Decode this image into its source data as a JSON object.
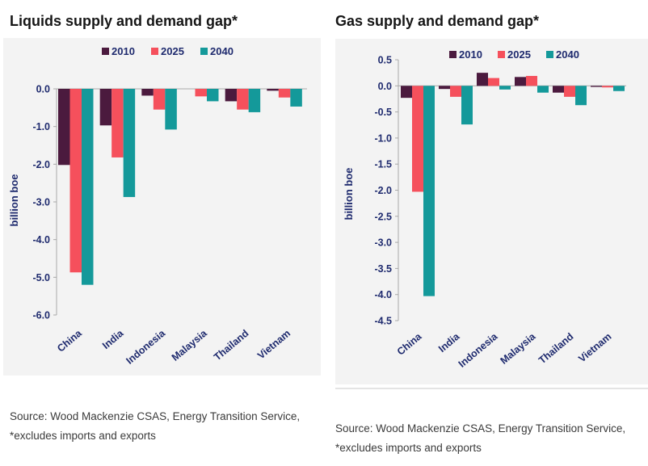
{
  "colors": {
    "series_2010": "#4b1a3e",
    "series_2025": "#f5505c",
    "series_2040": "#14999a",
    "axis": "#a8a8a8",
    "text": "#1e2a6e"
  },
  "liquids": {
    "source_line1": "Source: Wood Mackenzie CSAS, Energy Transition Service,",
    "source_line2": "*excludes imports and exports"
  },
  "gas": {
    "source_line1": "Source: Wood Mackenzie CSAS, Energy Transition Service,",
    "source_line2": "*excludes imports and exports"
  },
  "chart_data": [
    {
      "type": "bar",
      "title": "Liquids supply and demand gap*",
      "xlabel": "",
      "ylabel": "billion boe",
      "ylim": [
        -6.0,
        0.0
      ],
      "yticks": [
        0.0,
        -1.0,
        -2.0,
        -3.0,
        -4.0,
        -5.0,
        -6.0
      ],
      "ytick_labels": [
        "0.0",
        "-1.0",
        "-2.0",
        "-3.0",
        "-4.0",
        "-5.0",
        "-6.0"
      ],
      "legend_position": "top-center",
      "categories": [
        "China",
        "India",
        "Indonesia",
        "Malaysia",
        "Thailand",
        "Vietnam"
      ],
      "series": [
        {
          "name": "2010",
          "values": [
            -2.02,
            -0.97,
            -0.18,
            0.0,
            -0.33,
            -0.05
          ]
        },
        {
          "name": "2025",
          "values": [
            -4.87,
            -1.82,
            -0.55,
            -0.2,
            -0.55,
            -0.23
          ]
        },
        {
          "name": "2040",
          "values": [
            -5.2,
            -2.87,
            -1.08,
            -0.33,
            -0.62,
            -0.47
          ]
        }
      ]
    },
    {
      "type": "bar",
      "title": "Gas supply and demand gap*",
      "xlabel": "",
      "ylabel": "billion boe",
      "ylim": [
        -4.5,
        0.5
      ],
      "yticks": [
        0.5,
        0.0,
        -0.5,
        -1.0,
        -1.5,
        -2.0,
        -2.5,
        -3.0,
        -3.5,
        -4.0,
        -4.5
      ],
      "ytick_labels": [
        "0.5",
        "0.0",
        "-0.5",
        "-1.0",
        "-1.5",
        "-2.0",
        "-2.5",
        "-3.0",
        "-3.5",
        "-4.0",
        "-4.5"
      ],
      "legend_position": "top-center",
      "categories": [
        "China",
        "India",
        "Indonesia",
        "Malaysia",
        "Thailand",
        "Vietnam"
      ],
      "series": [
        {
          "name": "2010",
          "values": [
            -0.23,
            -0.06,
            0.25,
            0.17,
            -0.13,
            -0.02
          ]
        },
        {
          "name": "2025",
          "values": [
            -2.03,
            -0.21,
            0.15,
            0.19,
            -0.21,
            -0.03
          ]
        },
        {
          "name": "2040",
          "values": [
            -4.03,
            -0.74,
            -0.07,
            -0.13,
            -0.37,
            -0.1
          ]
        }
      ]
    }
  ]
}
